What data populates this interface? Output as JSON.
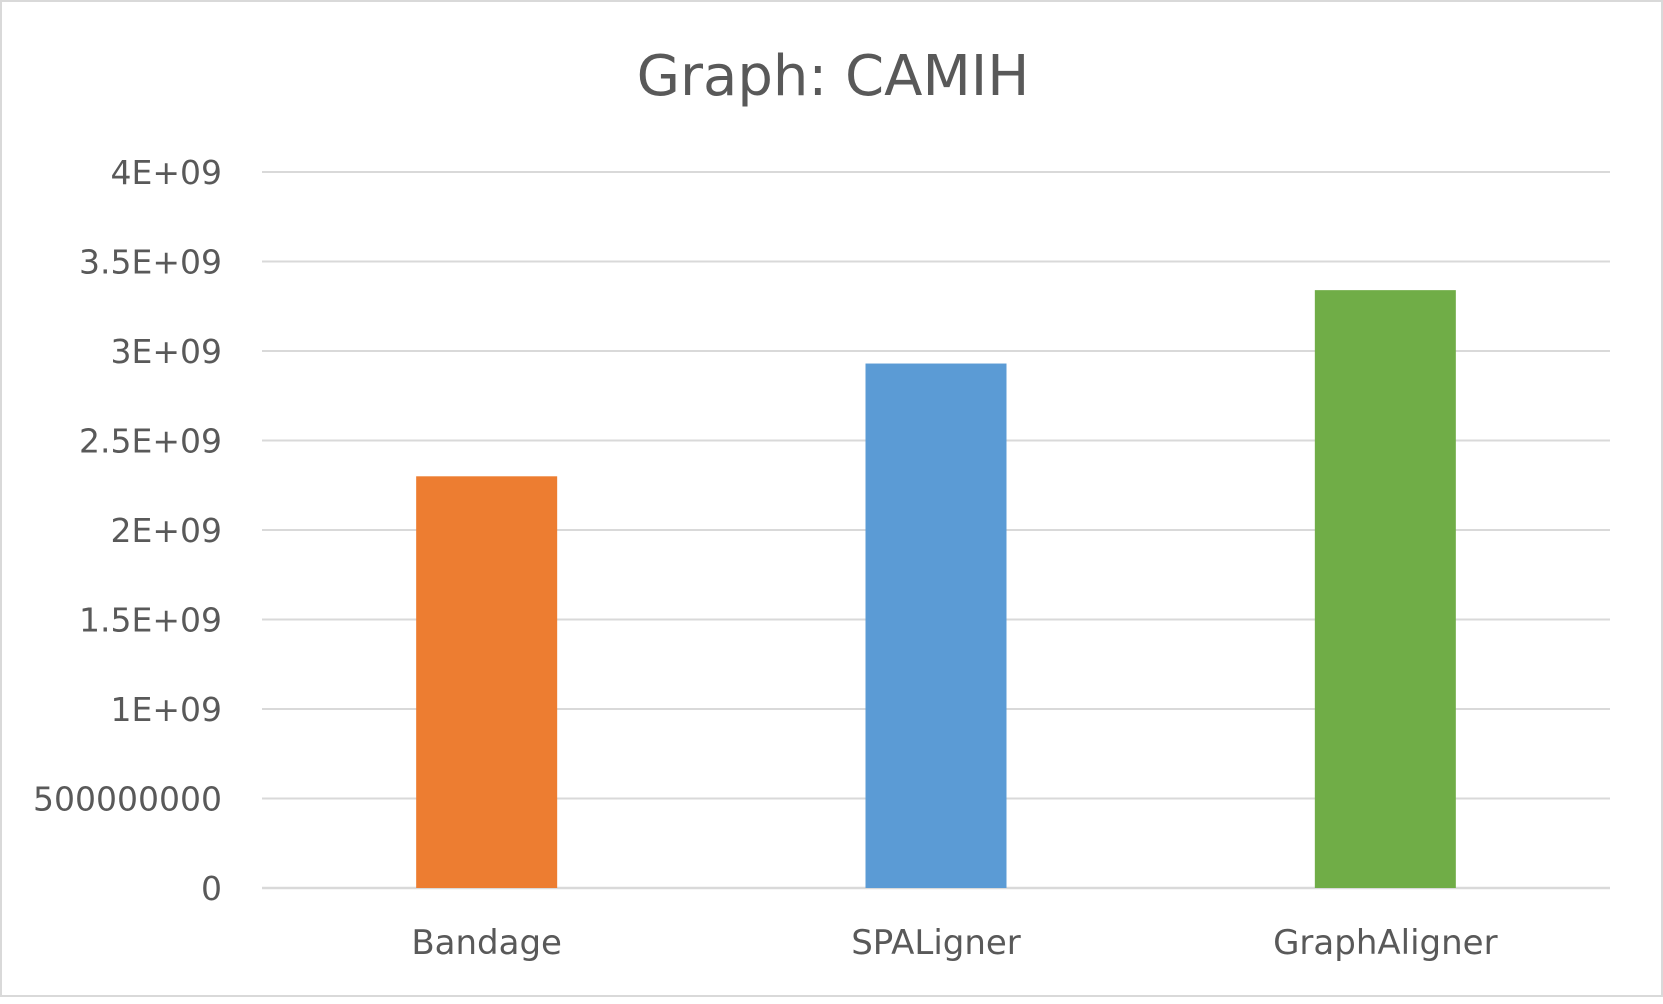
{
  "chart_data": {
    "type": "bar",
    "title": "Graph: CAMIH",
    "xlabel": "",
    "ylabel": "",
    "categories": [
      "Bandage",
      "SPALigner",
      "GraphAligner"
    ],
    "values": [
      2300000000,
      2930000000,
      3340000000
    ],
    "colors": [
      "#ED7D31",
      "#5B9BD5",
      "#70AD47"
    ],
    "ylim": [
      0,
      4000000000
    ],
    "y_ticks": [
      0,
      500000000,
      1000000000,
      1500000000,
      2000000000,
      2500000000,
      3000000000,
      3500000000,
      4000000000
    ],
    "y_tick_labels": [
      "0",
      "500000000",
      "1E+09",
      "1.5E+09",
      "2E+09",
      "2.5E+09",
      "3E+09",
      "3.5E+09",
      "4E+09"
    ],
    "grid": true,
    "legend": "none",
    "colors_theme": {
      "text": "#595959",
      "grid": "#D9D9D9",
      "border": "#D9D9D9"
    }
  }
}
